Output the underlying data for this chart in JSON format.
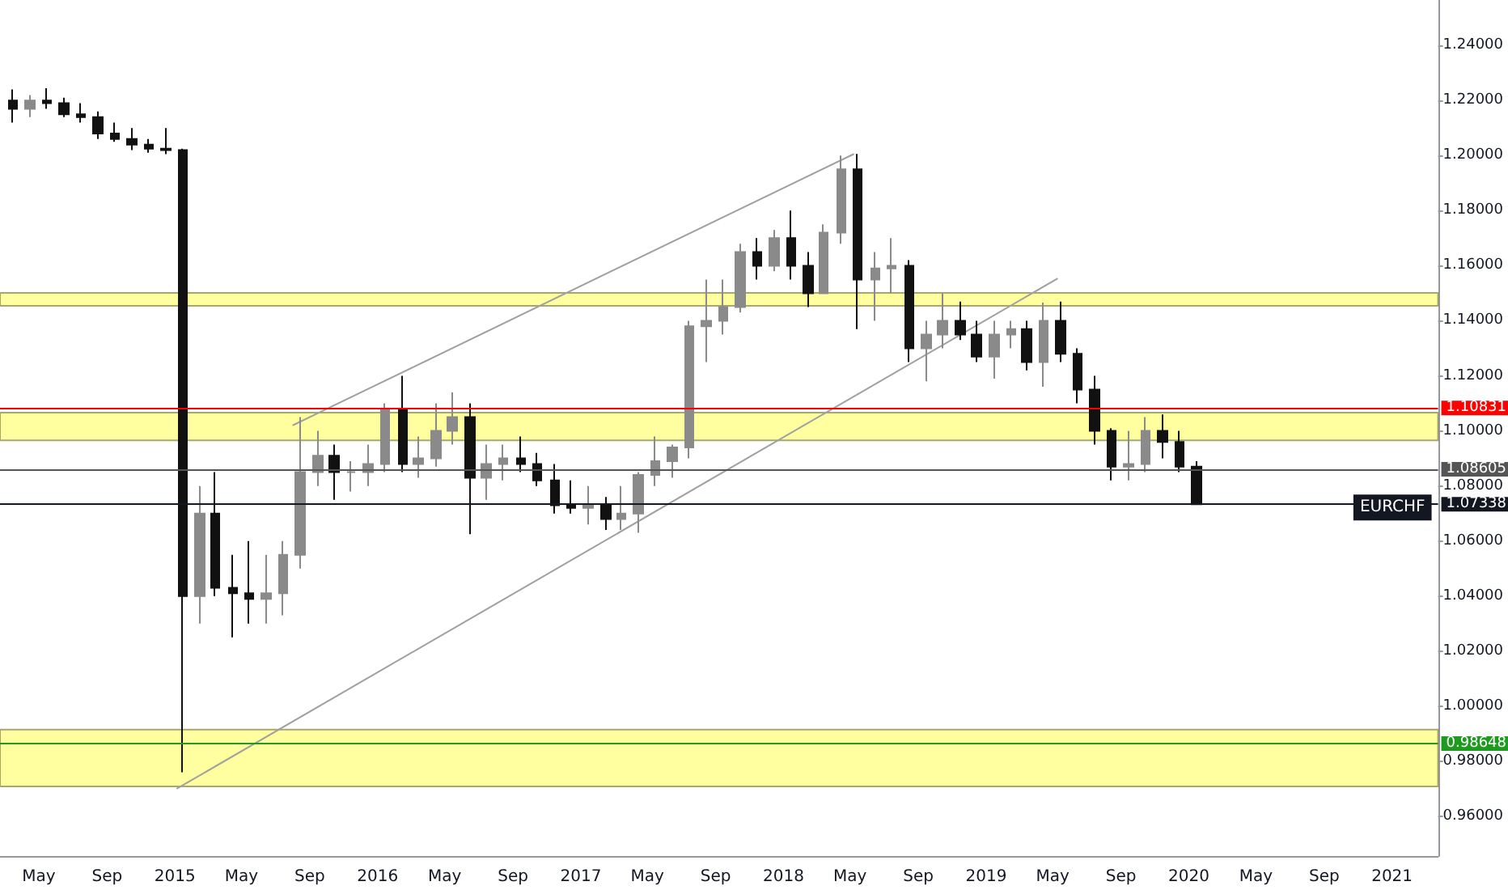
{
  "chart_data": {
    "type": "candlestick",
    "x": [
      "2014-03-15",
      "2014-04-15",
      "2014-05-15",
      "2014-06-15",
      "2014-07-15",
      "2014-08-15",
      "2014-09-15",
      "2014-10-15",
      "2014-11-15",
      "2014-12-15",
      "2015-01-15",
      "2015-02-15",
      "2015-03-15",
      "2015-04-15",
      "2015-05-15",
      "2015-06-15",
      "2015-07-15",
      "2015-08-15",
      "2015-09-15",
      "2015-10-15",
      "2015-11-15",
      "2015-12-15",
      "2016-01-15",
      "2016-02-15",
      "2016-03-15",
      "2016-04-15",
      "2016-05-15",
      "2016-06-15",
      "2016-07-15",
      "2016-08-15",
      "2016-09-15",
      "2016-10-15",
      "2016-11-15",
      "2016-12-15",
      "2017-01-15",
      "2017-02-15",
      "2017-03-15",
      "2017-04-15",
      "2017-05-15",
      "2017-06-15",
      "2017-07-15",
      "2017-08-15",
      "2017-09-15",
      "2017-10-15",
      "2017-11-15",
      "2017-12-15",
      "2018-01-15",
      "2018-02-15",
      "2018-03-15",
      "2018-04-15",
      "2018-05-15",
      "2018-06-15",
      "2018-07-15",
      "2018-08-15",
      "2018-09-15",
      "2018-10-15",
      "2018-11-15",
      "2018-12-15",
      "2019-01-15",
      "2019-02-15",
      "2019-03-15",
      "2019-04-15",
      "2019-05-15",
      "2019-06-15",
      "2019-07-15",
      "2019-08-15",
      "2019-09-15",
      "2019-10-15",
      "2019-11-15",
      "2019-12-15",
      "2020-01-15"
    ],
    "ohlc": [
      [
        1.22,
        1.224,
        1.212,
        1.217
      ],
      [
        1.217,
        1.222,
        1.214,
        1.22
      ],
      [
        1.22,
        1.2245,
        1.217,
        1.219
      ],
      [
        1.219,
        1.221,
        1.214,
        1.215
      ],
      [
        1.215,
        1.219,
        1.212,
        1.214
      ],
      [
        1.214,
        1.216,
        1.206,
        1.208
      ],
      [
        1.208,
        1.212,
        1.205,
        1.206
      ],
      [
        1.206,
        1.21,
        1.202,
        1.204
      ],
      [
        1.204,
        1.206,
        1.201,
        1.2025
      ],
      [
        1.2025,
        1.21,
        1.2005,
        1.202
      ],
      [
        1.202,
        1.2025,
        0.976,
        1.04
      ],
      [
        1.04,
        1.08,
        1.03,
        1.07
      ],
      [
        1.07,
        1.085,
        1.04,
        1.043
      ],
      [
        1.043,
        1.055,
        1.025,
        1.041
      ],
      [
        1.041,
        1.06,
        1.03,
        1.039
      ],
      [
        1.039,
        1.055,
        1.03,
        1.041
      ],
      [
        1.041,
        1.06,
        1.033,
        1.055
      ],
      [
        1.055,
        1.105,
        1.05,
        1.085
      ],
      [
        1.085,
        1.1,
        1.08,
        1.091
      ],
      [
        1.091,
        1.095,
        1.075,
        1.085
      ],
      [
        1.085,
        1.089,
        1.078,
        1.085
      ],
      [
        1.085,
        1.095,
        1.08,
        1.088
      ],
      [
        1.088,
        1.11,
        1.085,
        1.108
      ],
      [
        1.108,
        1.12,
        1.085,
        1.088
      ],
      [
        1.088,
        1.098,
        1.083,
        1.09
      ],
      [
        1.09,
        1.11,
        1.087,
        1.1
      ],
      [
        1.1,
        1.114,
        1.095,
        1.105
      ],
      [
        1.105,
        1.11,
        1.0625,
        1.083
      ],
      [
        1.083,
        1.095,
        1.075,
        1.088
      ],
      [
        1.088,
        1.095,
        1.082,
        1.09
      ],
      [
        1.09,
        1.098,
        1.085,
        1.088
      ],
      [
        1.088,
        1.092,
        1.08,
        1.082
      ],
      [
        1.082,
        1.088,
        1.07,
        1.073
      ],
      [
        1.073,
        1.082,
        1.07,
        1.072
      ],
      [
        1.072,
        1.08,
        1.066,
        1.073
      ],
      [
        1.073,
        1.076,
        1.064,
        1.068
      ],
      [
        1.068,
        1.08,
        1.064,
        1.07
      ],
      [
        1.07,
        1.085,
        1.063,
        1.084
      ],
      [
        1.084,
        1.098,
        1.08,
        1.089
      ],
      [
        1.089,
        1.095,
        1.083,
        1.094
      ],
      [
        1.094,
        1.14,
        1.09,
        1.138
      ],
      [
        1.138,
        1.155,
        1.125,
        1.14
      ],
      [
        1.14,
        1.155,
        1.135,
        1.145
      ],
      [
        1.145,
        1.168,
        1.143,
        1.165
      ],
      [
        1.165,
        1.17,
        1.155,
        1.16
      ],
      [
        1.16,
        1.173,
        1.158,
        1.17
      ],
      [
        1.17,
        1.18,
        1.155,
        1.16
      ],
      [
        1.16,
        1.165,
        1.145,
        1.15
      ],
      [
        1.15,
        1.175,
        1.15,
        1.172
      ],
      [
        1.172,
        1.2,
        1.168,
        1.195
      ],
      [
        1.195,
        1.2006,
        1.137,
        1.155
      ],
      [
        1.155,
        1.165,
        1.14,
        1.159
      ],
      [
        1.159,
        1.17,
        1.15,
        1.16
      ],
      [
        1.16,
        1.162,
        1.125,
        1.13
      ],
      [
        1.13,
        1.14,
        1.118,
        1.135
      ],
      [
        1.135,
        1.15,
        1.13,
        1.14
      ],
      [
        1.14,
        1.147,
        1.133,
        1.135
      ],
      [
        1.135,
        1.14,
        1.125,
        1.127
      ],
      [
        1.127,
        1.14,
        1.119,
        1.135
      ],
      [
        1.135,
        1.14,
        1.13,
        1.137
      ],
      [
        1.137,
        1.14,
        1.122,
        1.125
      ],
      [
        1.125,
        1.1466,
        1.116,
        1.14
      ],
      [
        1.14,
        1.147,
        1.125,
        1.128
      ],
      [
        1.128,
        1.13,
        1.11,
        1.115
      ],
      [
        1.115,
        1.12,
        1.095,
        1.1
      ],
      [
        1.1,
        1.101,
        1.082,
        1.087
      ],
      [
        1.087,
        1.1,
        1.082,
        1.088
      ],
      [
        1.088,
        1.105,
        1.085,
        1.1
      ],
      [
        1.1,
        1.106,
        1.09,
        1.096
      ],
      [
        1.096,
        1.1,
        1.085,
        1.087
      ],
      [
        1.087,
        1.089,
        1.07338,
        1.07338
      ]
    ],
    "series": [
      {
        "type": "line",
        "color": "#a0a0a0",
        "x": [
          "2015-08-01",
          "2018-05-08"
        ],
        "values": [
          1.102,
          1.2006
        ]
      },
      {
        "type": "line",
        "color": "#a0a0a0",
        "x": [
          "2015-01-04",
          "2019-05-10"
        ],
        "values": [
          0.97,
          1.1554
        ]
      }
    ],
    "bands": [
      {
        "axis": "y",
        "from": 0.9709,
        "to": 0.9915,
        "color": "#ffff80"
      },
      {
        "axis": "y",
        "from": 1.0966,
        "to": 1.1066,
        "color": "#ffff80"
      },
      {
        "axis": "y",
        "from": 1.1454,
        "to": 1.1501,
        "color": "#ffff80"
      }
    ],
    "ref_lines": [
      {
        "axis": "y",
        "value": 1.10831,
        "label": "1.10831",
        "color": "#ff0000"
      },
      {
        "axis": "y",
        "value": 1.08605,
        "label": "1.08605",
        "color": "#555555"
      },
      {
        "axis": "y",
        "value": 1.07338,
        "label": "1.07338",
        "color": "#131722"
      },
      {
        "axis": "y",
        "value": 0.98648,
        "label": "0.98648",
        "color": "#1e9b1e"
      }
    ],
    "annotations": [
      "EURCHF"
    ],
    "xlim": [
      "2014-02-20",
      "2021-03-25"
    ],
    "xticks": [
      {
        "value": "2014-05-01",
        "label": "May"
      },
      {
        "value": "2014-09-01",
        "label": "Sep"
      },
      {
        "value": "2015-01-01",
        "label": "2015"
      },
      {
        "value": "2015-05-01",
        "label": "May"
      },
      {
        "value": "2015-09-01",
        "label": "Sep"
      },
      {
        "value": "2016-01-01",
        "label": "2016"
      },
      {
        "value": "2016-05-01",
        "label": "May"
      },
      {
        "value": "2016-09-01",
        "label": "Sep"
      },
      {
        "value": "2017-01-01",
        "label": "2017"
      },
      {
        "value": "2017-05-01",
        "label": "May"
      },
      {
        "value": "2017-09-01",
        "label": "Sep"
      },
      {
        "value": "2018-01-01",
        "label": "2018"
      },
      {
        "value": "2018-05-01",
        "label": "May"
      },
      {
        "value": "2018-09-01",
        "label": "Sep"
      },
      {
        "value": "2019-01-01",
        "label": "2019"
      },
      {
        "value": "2019-05-01",
        "label": "May"
      },
      {
        "value": "2019-09-01",
        "label": "Sep"
      },
      {
        "value": "2020-01-01",
        "label": "2020"
      },
      {
        "value": "2020-05-01",
        "label": "May"
      },
      {
        "value": "2020-09-01",
        "label": "Sep"
      },
      {
        "value": "2021-01-01",
        "label": "2021"
      }
    ],
    "ylim": [
      0.9456,
      1.2565
    ],
    "yticks": [
      {
        "value": 0.96,
        "label": "0.96000"
      },
      {
        "value": 0.98,
        "label": "0.98000"
      },
      {
        "value": 1.0,
        "label": "1.00000"
      },
      {
        "value": 1.02,
        "label": "1.02000"
      },
      {
        "value": 1.04,
        "label": "1.04000"
      },
      {
        "value": 1.06,
        "label": "1.06000"
      },
      {
        "value": 1.08,
        "label": "1.08000"
      },
      {
        "value": 1.1,
        "label": "1.10000"
      },
      {
        "value": 1.12,
        "label": "1.12000"
      },
      {
        "value": 1.14,
        "label": "1.14000"
      },
      {
        "value": 1.16,
        "label": "1.16000"
      },
      {
        "value": 1.18,
        "label": "1.18000"
      },
      {
        "value": 1.2,
        "label": "1.20000"
      },
      {
        "value": 1.22,
        "label": "1.22000"
      },
      {
        "value": 1.24,
        "label": "1.24000"
      }
    ],
    "grid": false
  }
}
